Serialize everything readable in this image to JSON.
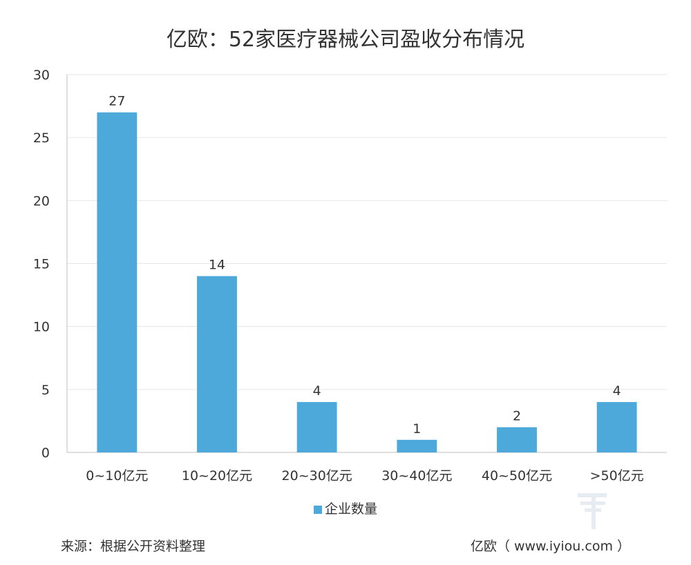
{
  "title": "亿欧：52家医疗器械公司盈收分布情况",
  "chart_data": {
    "type": "bar",
    "categories": [
      "0~10亿元",
      "10~20亿元",
      "20~30亿元",
      "30~40亿元",
      "40~50亿元",
      ">50亿元"
    ],
    "series": [
      {
        "name": "企业数量",
        "values": [
          27,
          14,
          4,
          1,
          2,
          4
        ]
      }
    ],
    "data_labels": [
      "27",
      "14",
      "4",
      "1",
      "2",
      "4"
    ],
    "y_ticks": [
      "0",
      "5",
      "10",
      "15",
      "20",
      "25",
      "30"
    ],
    "ylim": [
      0,
      30
    ],
    "xlabel": "",
    "ylabel": "",
    "grid": true,
    "legend_position": "bottom",
    "bar_color": "#4ea9db"
  },
  "legend": {
    "label": "企业数量"
  },
  "footer": {
    "source": "来源：根据公开资料整理",
    "credit": "亿欧（ www.iyiou.com ）"
  },
  "watermark": {
    "text": "亿欧"
  }
}
